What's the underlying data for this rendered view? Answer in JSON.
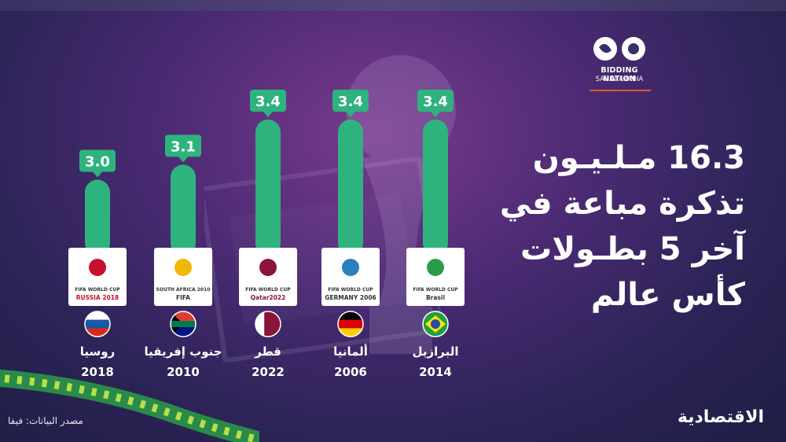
{
  "branding": {
    "logo_title": "BIDDING NATION",
    "logo_subtitle": "SAUDI ARABIA",
    "publisher": "الاقتصادية",
    "source": "مصدر البيانات: فيفا",
    "accent": "#2fb37e",
    "logo_line": "#e6562c"
  },
  "headline": [
    "16.3 مـلـيـون",
    "تذكرة مباعة في",
    "آخر 5 بطـولات",
    "كأس عالم"
  ],
  "chart_data": {
    "type": "bar",
    "categories": [
      "روسيا",
      "جنوب إفريقيا",
      "قطر",
      "ألمانيا",
      "البرازيل"
    ],
    "years": [
      "2018",
      "2010",
      "2022",
      "2006",
      "2014"
    ],
    "values": [
      3.0,
      3.1,
      3.4,
      3.4,
      3.4
    ],
    "value_labels": [
      "3.0",
      "3.1",
      "3.4",
      "3.4",
      "3.4"
    ],
    "logo_text": [
      [
        "FIFA WORLD CUP",
        "RUSSIA 2018"
      ],
      [
        "SOUTH AFRICA 2010",
        "FIFA"
      ],
      [
        "FIFA WORLD CUP",
        "Qatar2022"
      ],
      [
        "FIFA WORLD CUP",
        "GERMANY 2006"
      ],
      [
        "FIFA WORLD CUP",
        "Brasil"
      ]
    ],
    "flags": [
      "russia",
      "south-africa",
      "qatar",
      "germany",
      "brazil"
    ],
    "bar_color": "#2fb37e",
    "label_color": "#2fb37e"
  }
}
